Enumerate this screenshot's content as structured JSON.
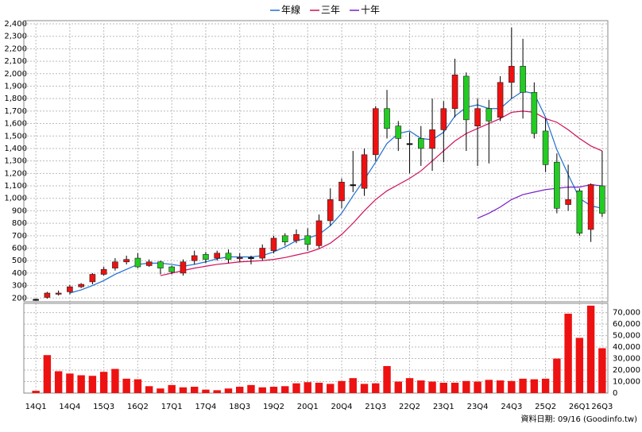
{
  "chart_data": {
    "type": "candlestick",
    "categories": [
      "14Q1",
      null,
      null,
      "14Q4",
      null,
      null,
      "15Q3",
      null,
      null,
      "16Q2",
      null,
      null,
      "17Q1",
      null,
      null,
      "17Q4",
      null,
      null,
      "18Q3",
      null,
      null,
      "19Q2",
      null,
      null,
      "20Q1",
      null,
      null,
      "20Q4",
      null,
      null,
      "21Q3",
      null,
      null,
      "22Q2",
      null,
      null,
      "23Q1",
      null,
      null,
      "23Q4",
      null,
      null,
      "24Q3",
      null,
      null,
      "25Q2",
      null,
      null,
      "26Q1",
      null,
      "26Q3"
    ],
    "open": [
      190,
      205,
      235,
      250,
      290,
      330,
      390,
      440,
      490,
      520,
      460,
      490,
      450,
      400,
      500,
      550,
      520,
      560,
      520,
      525,
      520,
      580,
      700,
      660,
      700,
      620,
      820,
      980,
      1110,
      1080,
      1350,
      1720,
      1580,
      1440,
      1480,
      1400,
      1550,
      1720,
      1980,
      1580,
      1720,
      1650,
      1930,
      2060,
      1850,
      1540,
      1290,
      950,
      1060,
      750,
      1100
    ],
    "high": [
      195,
      250,
      260,
      305,
      320,
      400,
      450,
      520,
      540,
      560,
      510,
      500,
      460,
      510,
      580,
      570,
      580,
      590,
      560,
      540,
      630,
      700,
      720,
      750,
      760,
      870,
      1080,
      1160,
      1380,
      1400,
      1740,
      1870,
      1620,
      1530,
      1580,
      1800,
      1780,
      2120,
      2010,
      1800,
      1790,
      1980,
      2370,
      2280,
      1930,
      1640,
      1360,
      1270,
      1080,
      1120,
      1380
    ],
    "low": [
      185,
      195,
      220,
      230,
      280,
      310,
      380,
      420,
      470,
      440,
      450,
      390,
      390,
      380,
      470,
      480,
      500,
      480,
      490,
      470,
      500,
      560,
      620,
      640,
      580,
      600,
      780,
      920,
      1050,
      1020,
      1300,
      1480,
      1380,
      1200,
      1260,
      1220,
      1290,
      1650,
      1380,
      1260,
      1280,
      1620,
      1800,
      1640,
      1480,
      1210,
      880,
      900,
      700,
      650,
      850
    ],
    "close": [
      190,
      240,
      240,
      290,
      310,
      390,
      430,
      490,
      510,
      450,
      490,
      440,
      410,
      490,
      540,
      510,
      560,
      510,
      525,
      525,
      600,
      680,
      650,
      710,
      630,
      820,
      990,
      1130,
      1110,
      1350,
      1720,
      1560,
      1480,
      1440,
      1400,
      1550,
      1720,
      1990,
      1630,
      1720,
      1620,
      1930,
      2060,
      1850,
      1520,
      1270,
      920,
      990,
      720,
      1110,
      880
    ],
    "series": [
      {
        "name": "年線",
        "color": "#1f6fd0",
        "values": [
          null,
          null,
          null,
          240,
          265,
          300,
          340,
          390,
          430,
          470,
          480,
          480,
          470,
          455,
          470,
          490,
          515,
          530,
          530,
          530,
          540,
          570,
          610,
          660,
          680,
          710,
          780,
          880,
          1020,
          1150,
          1290,
          1440,
          1520,
          1540,
          1480,
          1470,
          1530,
          1660,
          1730,
          1750,
          1720,
          1720,
          1800,
          1860,
          1840,
          1650,
          1390,
          1190,
          1000,
          940,
          920
        ]
      },
      {
        "name": "三年",
        "color": "#d0105a",
        "values": [
          null,
          null,
          null,
          null,
          null,
          null,
          null,
          null,
          null,
          null,
          null,
          380,
          400,
          420,
          440,
          455,
          470,
          480,
          490,
          495,
          500,
          510,
          525,
          545,
          565,
          595,
          640,
          710,
          800,
          900,
          990,
          1060,
          1110,
          1160,
          1220,
          1300,
          1380,
          1460,
          1520,
          1560,
          1600,
          1640,
          1690,
          1700,
          1690,
          1640,
          1610,
          1550,
          1480,
          1420,
          1380
        ]
      },
      {
        "name": "十年",
        "color": "#7a1fc8",
        "values": [
          null,
          null,
          null,
          null,
          null,
          null,
          null,
          null,
          null,
          null,
          null,
          null,
          null,
          null,
          null,
          null,
          null,
          null,
          null,
          null,
          null,
          null,
          null,
          null,
          null,
          null,
          null,
          null,
          null,
          null,
          null,
          null,
          null,
          null,
          null,
          null,
          null,
          null,
          null,
          840,
          880,
          930,
          990,
          1030,
          1050,
          1070,
          1080,
          1090,
          1090,
          1110,
          1100
        ]
      }
    ],
    "volume": {
      "color": "#ee1111",
      "axis": "y2",
      "values": [
        2000,
        33000,
        19000,
        17000,
        15500,
        15000,
        18500,
        21000,
        12500,
        12000,
        6000,
        4000,
        7000,
        5000,
        5500,
        3000,
        2500,
        4000,
        5500,
        7000,
        5000,
        5500,
        6000,
        8500,
        9500,
        9000,
        8000,
        10500,
        13000,
        8000,
        8500,
        23500,
        10000,
        13000,
        11000,
        10000,
        9000,
        9000,
        10500,
        10000,
        11500,
        11000,
        10500,
        12500,
        12000,
        12500,
        30000,
        69000,
        48000,
        76000,
        39000
      ]
    },
    "up_color": "#ee1111",
    "down_color": "#22cc22",
    "ylim": [
      170,
      2400
    ],
    "yticks": [
      200,
      300,
      400,
      500,
      600,
      700,
      800,
      900,
      {
        "value": 1000,
        "label": "1,000"
      },
      {
        "value": 1100,
        "label": "1,100"
      },
      {
        "value": 1200,
        "label": "1,200"
      },
      {
        "value": 1300,
        "label": "1,300"
      },
      {
        "value": 1400,
        "label": "1,400"
      },
      {
        "value": 1500,
        "label": "1,500"
      },
      {
        "value": 1600,
        "label": "1,600"
      },
      {
        "value": 1700,
        "label": "1,700"
      },
      {
        "value": 1800,
        "label": "1,800"
      },
      {
        "value": 1900,
        "label": "1,900"
      },
      {
        "value": 2000,
        "label": "2,000"
      },
      {
        "value": 2100,
        "label": "2,100"
      },
      {
        "value": 2200,
        "label": "2,200"
      },
      {
        "value": 2300,
        "label": "2,300"
      },
      {
        "value": 2400,
        "label": "2,400"
      }
    ],
    "y2lim": [
      0,
      78000
    ],
    "y2ticks": [
      0,
      {
        "value": 10000,
        "label": "10,000"
      },
      {
        "value": 20000,
        "label": "20,000"
      },
      {
        "value": 30000,
        "label": "30,000"
      },
      {
        "value": 40000,
        "label": "40,000"
      },
      {
        "value": 50000,
        "label": "50,000"
      },
      {
        "value": 60000,
        "label": "60,000"
      },
      {
        "value": 70000,
        "label": "70,000"
      }
    ],
    "grid": true,
    "footer": "資料日期: 09/16  (Goodinfo.tw)"
  }
}
